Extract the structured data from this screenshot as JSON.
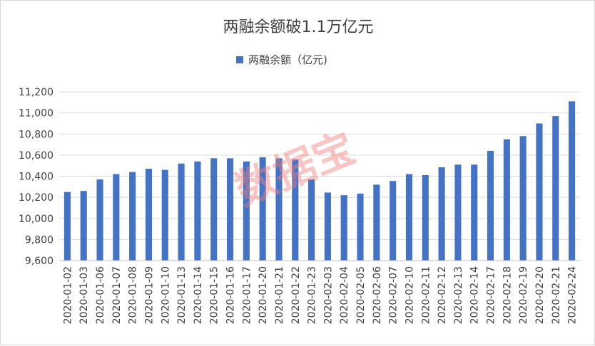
{
  "chart_data": {
    "type": "bar",
    "title": "两融余额破1.1万亿元",
    "legend_position": "top",
    "grid": true,
    "bar_color": "#4472C4",
    "ylim": [
      9600,
      11200
    ],
    "yticks": [
      "9,600",
      "9,800",
      "10,000",
      "10,200",
      "10,400",
      "10,600",
      "10,800",
      "11,000",
      "11,200"
    ],
    "categories": [
      "2020-01-02",
      "2020-01-03",
      "2020-01-06",
      "2020-01-07",
      "2020-01-08",
      "2020-01-09",
      "2020-01-10",
      "2020-01-13",
      "2020-01-14",
      "2020-01-15",
      "2020-01-16",
      "2020-01-17",
      "2020-01-20",
      "2020-01-21",
      "2020-01-22",
      "2020-01-23",
      "2020-02-03",
      "2020-02-04",
      "2020-02-05",
      "2020-02-06",
      "2020-02-07",
      "2020-02-10",
      "2020-02-11",
      "2020-02-12",
      "2020-02-13",
      "2020-02-14",
      "2020-02-17",
      "2020-02-18",
      "2020-02-19",
      "2020-02-20",
      "2020-02-21",
      "2020-02-24"
    ],
    "series": [
      {
        "name": "两融余额（亿元)",
        "values": [
          10250,
          10260,
          10370,
          10420,
          10440,
          10470,
          10460,
          10520,
          10540,
          10570,
          10570,
          10540,
          10580,
          10570,
          10560,
          10370,
          10245,
          10220,
          10235,
          10320,
          10355,
          10420,
          10410,
          10485,
          10510,
          10510,
          10640,
          10750,
          10780,
          10900,
          10970,
          11110
        ]
      }
    ]
  },
  "watermark": "数据宝"
}
